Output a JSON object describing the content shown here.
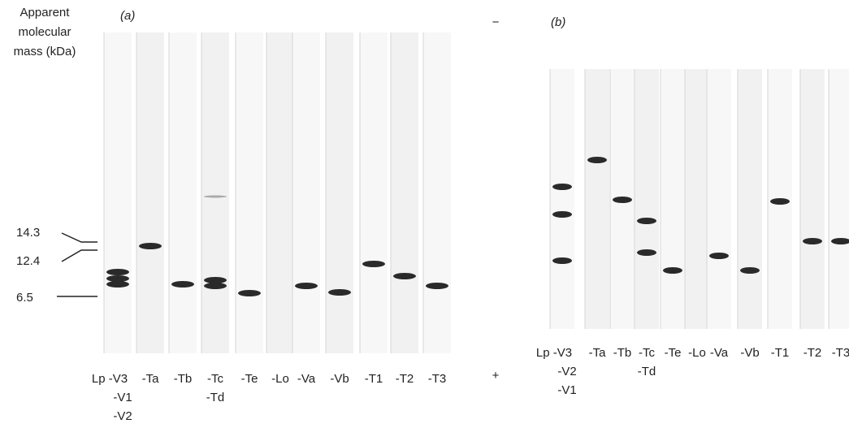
{
  "y_axis_title": [
    "Apparent",
    "molecular",
    "mass (kDa)"
  ],
  "markers": [
    "14.3",
    "12.4",
    "6.5"
  ],
  "polarity": {
    "minus": "−",
    "plus": "+"
  },
  "panel_a": {
    "label": "(a)",
    "lanes": [
      [
        "Lp -V3",
        "-V1",
        "-V2"
      ],
      [
        "-Ta"
      ],
      [
        "-Tb"
      ],
      [
        "-Tc",
        "-Td"
      ],
      [
        "-Te"
      ],
      [
        "-Lo"
      ],
      [
        "-Va"
      ],
      [
        "-Vb"
      ],
      [
        "-T1"
      ],
      [
        "-T2"
      ],
      [
        "-T3"
      ]
    ]
  },
  "panel_b": {
    "label": "(b)",
    "lanes": [
      [
        "Lp -V3",
        "-V2",
        "-V1"
      ],
      [
        "-Ta"
      ],
      [
        "-Tb"
      ],
      [
        "-Tc",
        "-Td"
      ],
      [
        "-Te"
      ],
      [
        "-Lo"
      ],
      [
        "-Va"
      ],
      [
        "-Vb"
      ],
      [
        "-T1"
      ],
      [
        "-T2"
      ],
      [
        "-T3"
      ]
    ]
  }
}
